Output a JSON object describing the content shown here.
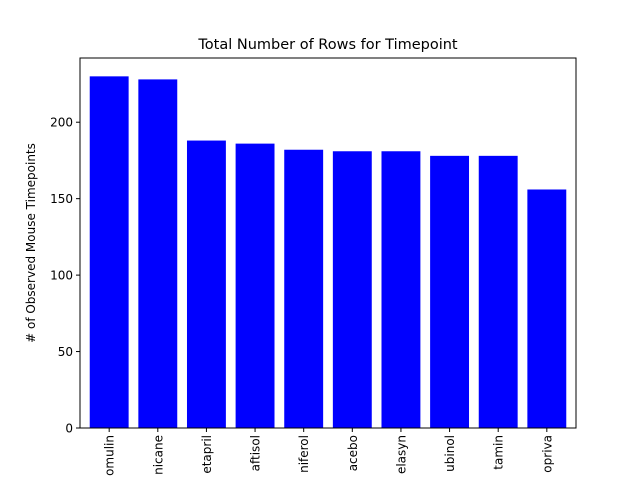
{
  "chart_data": {
    "type": "bar",
    "title": "Total Number of Rows for Timepoint",
    "xlabel": "",
    "ylabel": "# of Observed Mouse Timepoints",
    "categories": [
      "omulin",
      "nicane",
      "etapril",
      "aftisol",
      "niferol",
      "acebo",
      "elasyn",
      "ubinol",
      "tamin",
      "opriva"
    ],
    "values": [
      230,
      228,
      188,
      186,
      182,
      181,
      181,
      178,
      178,
      156
    ],
    "yticks": [
      0,
      50,
      100,
      150,
      200
    ],
    "ylim": [
      0,
      242
    ],
    "bar_color": "#0000ff",
    "grid": false,
    "legend": "none"
  }
}
